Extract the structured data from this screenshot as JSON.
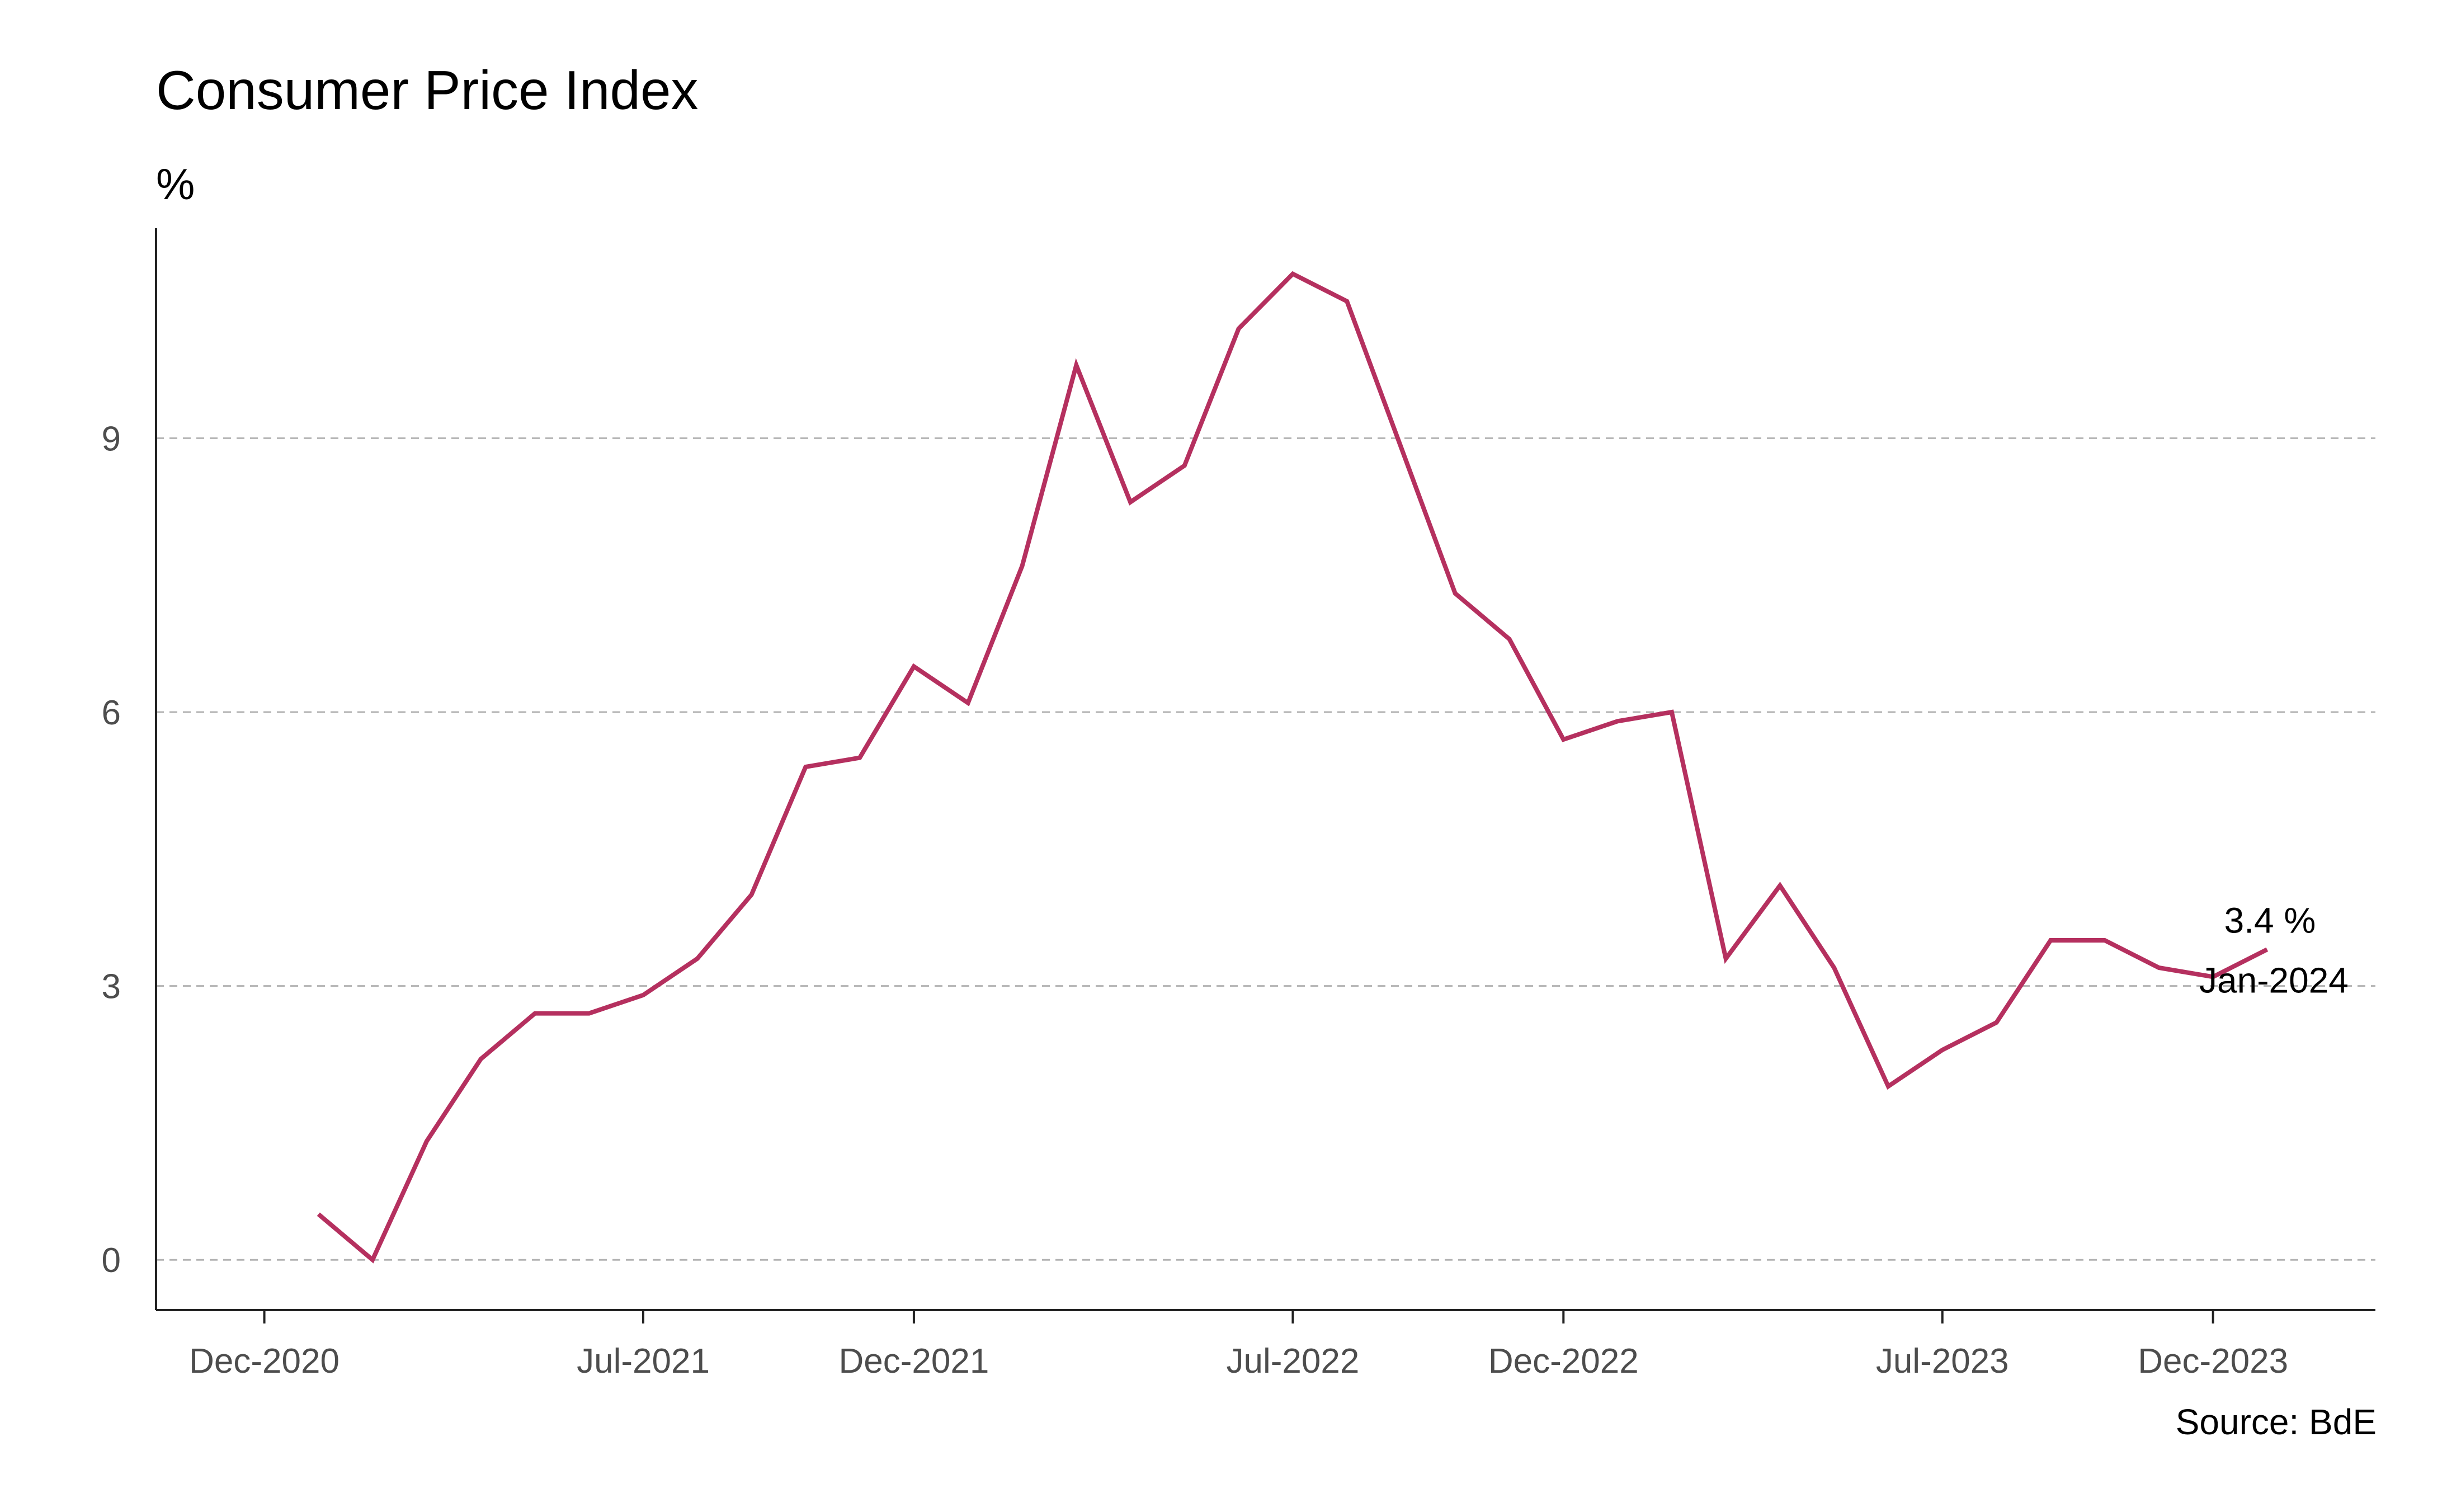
{
  "title": "Consumer Price Index",
  "unit_label": "%",
  "source": "Source: BdE",
  "colors": {
    "line": "#b5305f",
    "grid": "#b3b3b3",
    "axis": "#222222",
    "tick_text": "#4d4d4d"
  },
  "annotation": {
    "value_text": "3.4 %",
    "date_text": "Jan-2024"
  },
  "chart_data": {
    "type": "line",
    "title": "Consumer Price Index",
    "xlabel": "",
    "ylabel": "%",
    "grid": "horizontal dashed",
    "ylim": [
      -0.55,
      11.3
    ],
    "xlim": [
      "2020-10",
      "2024-03"
    ],
    "x_ticks": [
      "Dec-2020",
      "Jul-2021",
      "Dec-2021",
      "Jul-2022",
      "Dec-2022",
      "Jul-2023",
      "Dec-2023"
    ],
    "y_ticks": [
      0,
      3,
      6,
      9
    ],
    "series": [
      {
        "x": [
          "2021-01",
          "2021-02",
          "2021-03",
          "2021-04",
          "2021-05",
          "2021-06",
          "2021-07",
          "2021-08",
          "2021-09",
          "2021-10",
          "2021-11",
          "2021-12",
          "2022-01",
          "2022-02",
          "2022-03",
          "2022-04",
          "2022-05",
          "2022-06",
          "2022-07",
          "2022-08",
          "2022-09",
          "2022-10",
          "2022-11",
          "2022-12",
          "2023-01",
          "2023-02",
          "2023-03",
          "2023-04",
          "2023-05",
          "2023-06",
          "2023-07",
          "2023-08",
          "2023-09",
          "2023-10",
          "2023-11",
          "2023-12",
          "2024-01"
        ],
        "values": [
          0.5,
          0.0,
          1.3,
          2.2,
          2.7,
          2.7,
          2.9,
          3.3,
          4.0,
          5.4,
          5.5,
          6.5,
          6.1,
          7.6,
          9.8,
          8.3,
          8.7,
          10.2,
          10.8,
          10.5,
          8.9,
          7.3,
          6.8,
          5.7,
          5.9,
          6.0,
          3.3,
          4.1,
          3.2,
          1.9,
          2.3,
          2.6,
          3.5,
          3.5,
          3.2,
          3.1,
          3.4
        ]
      }
    ]
  }
}
